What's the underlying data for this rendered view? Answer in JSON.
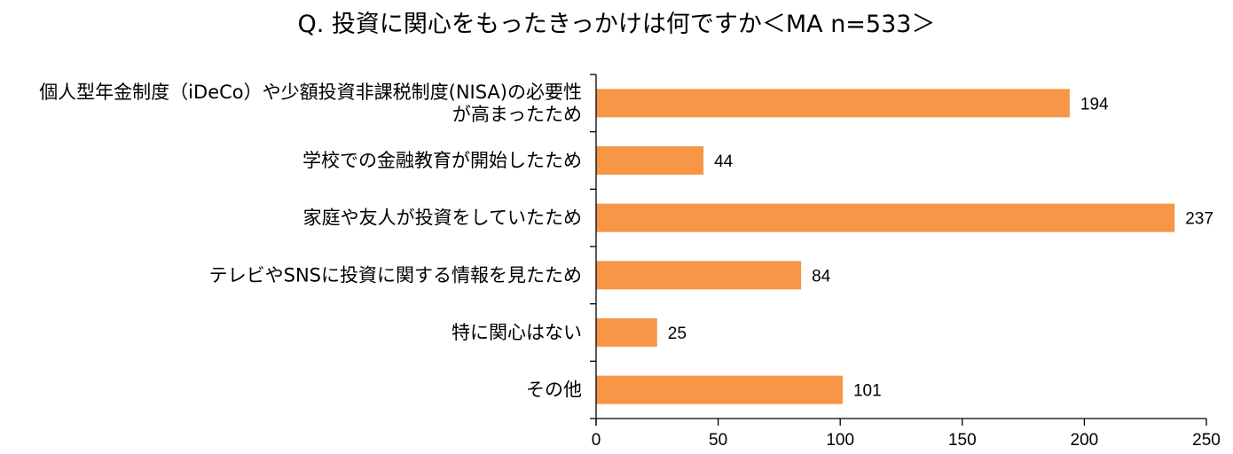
{
  "chart_data": {
    "type": "bar",
    "orientation": "horizontal",
    "title": "Q. 投資に関心をもったきっかけは何ですか＜MA n=533＞",
    "categories": [
      "個人型年金制度（iDeCo）や少額投資非課税制度(NISA)の必要性が高まったため",
      "学校での金融教育が開始したため",
      "家庭や友人が投資をしていたため",
      "テレビやSNSに投資に関する情報を見たため",
      "特に関心はない",
      "その他"
    ],
    "category_lines": [
      [
        "個人型年金制度（iDeCo）や少額投資非課税制度(NISA)の必要性",
        "が高まったため"
      ],
      [
        "学校での金融教育が開始したため"
      ],
      [
        "家庭や友人が投資をしていたため"
      ],
      [
        "テレビやSNSに投資に関する情報を見たため"
      ],
      [
        "特に関心はない"
      ],
      [
        "その他"
      ]
    ],
    "values": [
      194,
      44,
      237,
      84,
      25,
      101
    ],
    "value_labels": [
      "194",
      "44",
      "237",
      "84",
      "25",
      "101"
    ],
    "xlim": [
      0,
      250
    ],
    "xticks": [
      0,
      50,
      100,
      150,
      200,
      250
    ],
    "xtick_labels": [
      "0",
      "50",
      "100",
      "150",
      "200",
      "250"
    ],
    "bar_color": "#F79646",
    "axis_color": "#000000",
    "grid": false,
    "legend": "none"
  }
}
